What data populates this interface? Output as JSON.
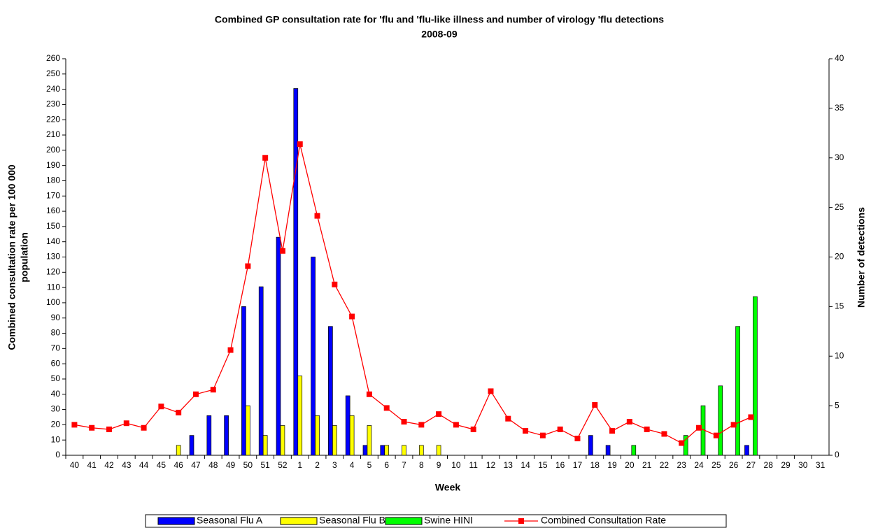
{
  "chart_data": {
    "type": "bar_line",
    "title": [
      "Combined GP consultation rate for 'flu and 'flu-like illness and number of virology 'flu detections",
      "2008-09"
    ],
    "xlabel": "Week",
    "ylabel": [
      "Combined consultation rate per 100 000",
      "population"
    ],
    "y2label": "Number of detections",
    "categories": [
      "40",
      "41",
      "42",
      "43",
      "44",
      "45",
      "46",
      "47",
      "48",
      "49",
      "50",
      "51",
      "52",
      "1",
      "2",
      "3",
      "4",
      "5",
      "6",
      "7",
      "8",
      "9",
      "10",
      "11",
      "12",
      "13",
      "14",
      "15",
      "16",
      "17",
      "18",
      "19",
      "20",
      "21",
      "22",
      "23",
      "24",
      "25",
      "26",
      "27",
      "28",
      "29",
      "30",
      "31"
    ],
    "series": [
      {
        "name": "Seasonal Flu A",
        "type": "bar",
        "axis": "y2",
        "color": "#0000ff",
        "values": [
          0,
          0,
          0,
          0,
          0,
          0,
          0,
          2,
          4,
          4,
          15,
          17,
          22,
          37,
          20,
          13,
          6,
          1,
          1,
          0,
          0,
          0,
          0,
          0,
          0,
          0,
          0,
          0,
          0,
          0,
          2,
          1,
          0,
          0,
          0,
          0,
          0,
          0,
          0,
          1,
          0,
          0,
          0,
          0
        ]
      },
      {
        "name": "Seasonal Flu B",
        "type": "bar",
        "axis": "y2",
        "color": "#ffff00",
        "values": [
          0,
          0,
          0,
          0,
          0,
          0,
          1,
          0,
          0,
          0,
          5,
          2,
          3,
          8,
          4,
          3,
          4,
          3,
          1,
          1,
          1,
          1,
          0,
          0,
          0,
          0,
          0,
          0,
          0,
          0,
          0,
          0,
          0,
          0,
          0,
          0,
          0,
          0,
          0,
          0,
          0,
          0,
          0,
          0
        ]
      },
      {
        "name": "Swine HINI",
        "type": "bar",
        "axis": "y2",
        "color": "#00ff00",
        "values": [
          0,
          0,
          0,
          0,
          0,
          0,
          0,
          0,
          0,
          0,
          0,
          0,
          0,
          0,
          0,
          0,
          0,
          0,
          0,
          0,
          0,
          0,
          0,
          0,
          0,
          0,
          0,
          0,
          0,
          0,
          0,
          0,
          1,
          0,
          0,
          2,
          5,
          7,
          13,
          16,
          0,
          0,
          0,
          0
        ]
      },
      {
        "name": "Combined Consultation Rate",
        "type": "line",
        "axis": "y",
        "color": "#ff0000",
        "values": [
          20,
          18,
          17,
          21,
          18,
          32,
          28,
          40,
          43,
          69,
          124,
          195,
          134,
          204,
          157,
          112,
          91,
          40,
          31,
          22,
          20,
          27,
          20,
          17,
          42,
          24,
          16,
          13,
          17,
          11,
          33,
          16,
          22,
          17,
          14,
          8,
          18,
          13,
          20,
          25,
          null,
          null,
          null,
          null
        ]
      }
    ],
    "ylim": [
      0,
      260
    ],
    "yticks": [
      0,
      10,
      20,
      30,
      40,
      50,
      60,
      70,
      80,
      90,
      100,
      110,
      120,
      130,
      140,
      150,
      160,
      170,
      180,
      190,
      200,
      210,
      220,
      230,
      240,
      250,
      260
    ],
    "y2lim": [
      0,
      40
    ],
    "y2ticks": [
      0,
      5,
      10,
      15,
      20,
      25,
      30,
      35,
      40
    ],
    "legend": "bottom"
  }
}
